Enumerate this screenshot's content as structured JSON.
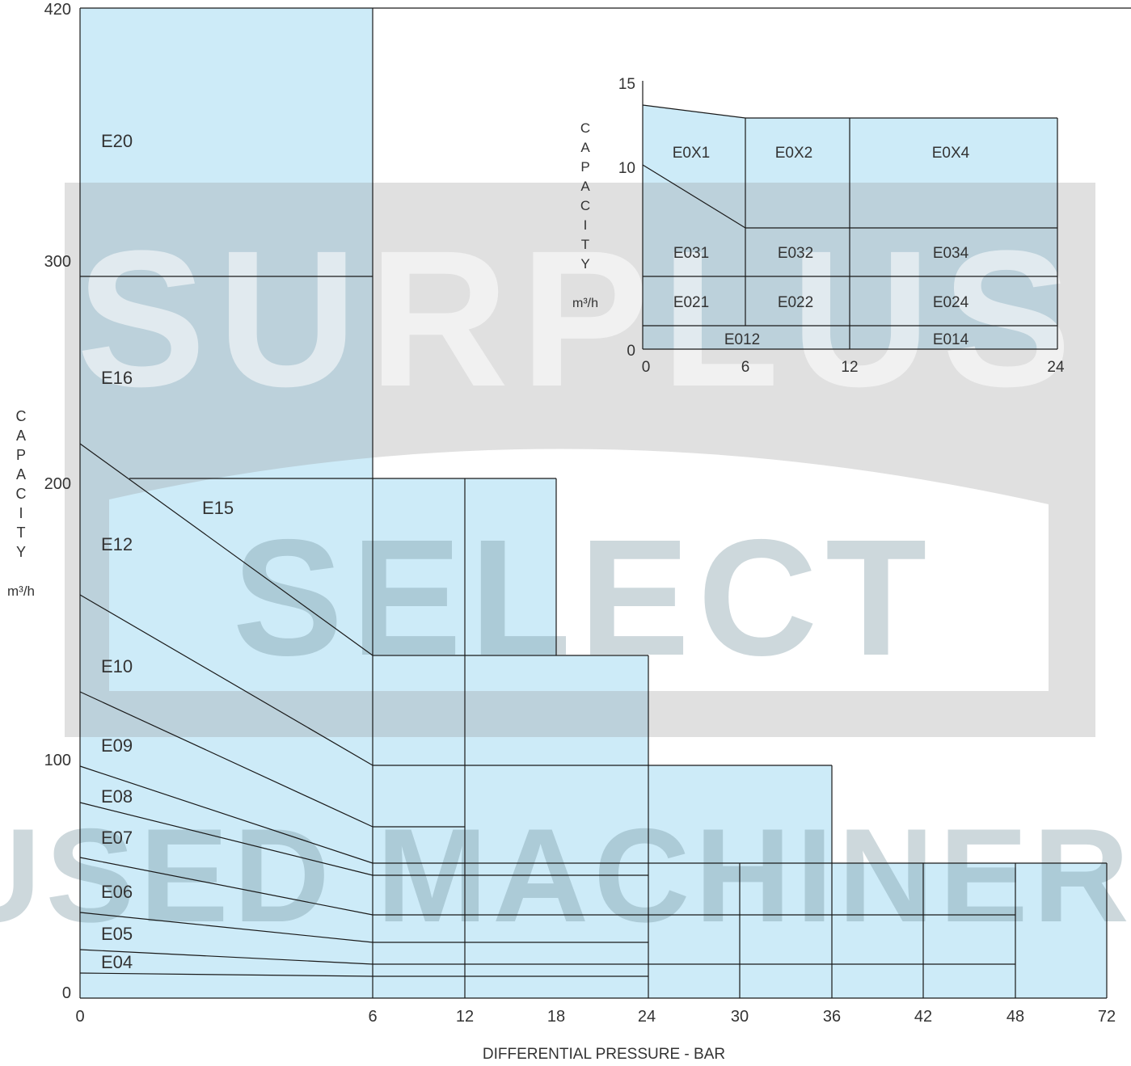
{
  "chart_data": [
    {
      "type": "area",
      "title": "",
      "xlabel": "DIFFERENTIAL PRESSURE - BAR",
      "ylabel_letters": [
        "C",
        "A",
        "P",
        "A",
        "C",
        "I",
        "T",
        "Y"
      ],
      "ylabel_unit": "m³/h",
      "x_ticks": [
        "0",
        "6",
        "12",
        "18",
        "24",
        "30",
        "36",
        "42",
        "48",
        "72"
      ],
      "y_ticks": [
        "0",
        "100",
        "200",
        "300",
        "420"
      ],
      "ylim": [
        0,
        420
      ],
      "note": "x axis is categorical-spaced: ticks are evenly spaced, 48 to 72 occupies one interval",
      "regions": [
        {
          "label": "E20",
          "max_pressure": 6,
          "capacity_from": 294,
          "capacity_to": 420
        },
        {
          "label": "E16",
          "max_pressure": 6,
          "capacity_at_0": 215,
          "capacity_at_6": 143,
          "capacity_top": 294
        },
        {
          "label": "E15",
          "max_pressure": 18,
          "capacity": 201
        },
        {
          "label": "E12",
          "max_pressure": 24,
          "capacity_at_0": 215,
          "capacity_at_6": 143
        },
        {
          "label": "E10",
          "max_pressure": 36,
          "capacity_at_0": 154,
          "capacity_at_6": 99
        },
        {
          "label": "E09",
          "max_pressure": 12,
          "capacity_at_0": 128,
          "capacity_at_6": 73
        },
        {
          "label": "E08",
          "max_pressure": 72,
          "capacity_at_0": 98,
          "capacity_at_6": 57
        },
        {
          "label": "E07",
          "max_pressure": 24,
          "capacity_at_0": 83,
          "capacity_at_6": 52
        },
        {
          "label": "E06",
          "max_pressure": 48,
          "capacity_at_0": 60,
          "capacity_at_6": 35
        },
        {
          "label": "E05",
          "max_pressure": 24,
          "capacity_at_0": 36,
          "capacity_at_6": 23
        },
        {
          "label": "E04",
          "max_pressure": 48,
          "capacity_at_0": 20,
          "capacity_at_6": 14
        }
      ],
      "labels": [
        "E20",
        "E16",
        "E15",
        "E12",
        "E10",
        "E09",
        "E08",
        "E07",
        "E06",
        "E05",
        "E04"
      ]
    },
    {
      "type": "area",
      "title": "",
      "ylabel_letters": [
        "C",
        "A",
        "P",
        "A",
        "C",
        "I",
        "T",
        "Y"
      ],
      "ylabel_unit": "m³/h",
      "x_ticks": [
        "0",
        "6",
        "12",
        "24"
      ],
      "y_ticks": [
        "0",
        "10",
        "15"
      ],
      "ylim": [
        0,
        15
      ],
      "regions": [
        {
          "label": "E0X1",
          "max_pressure": 6,
          "capacity_at_0": 13.3,
          "capacity_at_6": 12.8
        },
        {
          "label": "E0X2",
          "max_pressure": 12,
          "capacity": 12.8
        },
        {
          "label": "E0X4",
          "max_pressure": 24,
          "capacity": 12.8
        },
        {
          "label": "E031",
          "max_pressure": 6,
          "capacity_at_0": 10,
          "capacity_at_6": 8.4
        },
        {
          "label": "E032",
          "max_pressure": 12,
          "capacity": 8.4
        },
        {
          "label": "E034",
          "max_pressure": 24,
          "capacity": 8.4
        },
        {
          "label": "E021",
          "max_pressure": 6,
          "capacity": 5
        },
        {
          "label": "E022",
          "max_pressure": 12,
          "capacity": 5
        },
        {
          "label": "E024",
          "max_pressure": 24,
          "capacity": 5
        },
        {
          "label": "E012",
          "max_pressure": 12,
          "capacity": 1.6
        },
        {
          "label": "E014",
          "max_pressure": 24,
          "capacity": 1.6
        }
      ],
      "labels": [
        "E0X1",
        "E0X2",
        "E0X4",
        "E031",
        "E032",
        "E034",
        "E021",
        "E022",
        "E024",
        "E012",
        "E014"
      ]
    }
  ],
  "watermark": {
    "line1": "SURPLUS",
    "line2": "SELECT",
    "line3": "USED MACHINERY"
  },
  "colors": {
    "fill": "#c8e9f7",
    "fill_dark": "#a9cfdc",
    "line": "#1a1a1a",
    "watermark_gray": "#d9d9d9",
    "text": "#333333"
  }
}
